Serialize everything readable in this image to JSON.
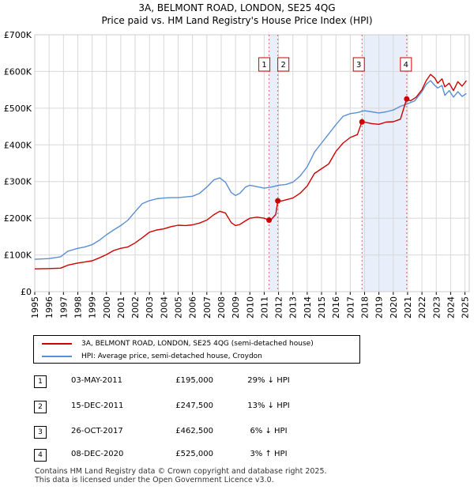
{
  "title_line1": "3A, BELMONT ROAD, LONDON, SE25 4QG",
  "title_line2": "Price paid vs. HM Land Registry's House Price Index (HPI)",
  "chart_data": {
    "type": "line",
    "xlim": [
      1995,
      2025.3
    ],
    "ylim": [
      0,
      700000
    ],
    "yticks": [
      0,
      100000,
      200000,
      300000,
      400000,
      500000,
      600000,
      700000
    ],
    "ytick_labels": [
      "£0",
      "£100K",
      "£200K",
      "£300K",
      "£400K",
      "£500K",
      "£600K",
      "£700K"
    ],
    "xticks": [
      "1995",
      "1996",
      "1997",
      "1998",
      "1999",
      "2000",
      "2001",
      "2002",
      "2003",
      "2004",
      "2005",
      "2006",
      "2007",
      "2008",
      "2009",
      "2010",
      "2011",
      "2012",
      "2013",
      "2014",
      "2015",
      "2016",
      "2017",
      "2018",
      "2019",
      "2020",
      "2021",
      "2022",
      "2023",
      "2024",
      "2025"
    ],
    "series": [
      {
        "name": "3A, BELMONT ROAD, LONDON, SE25 4QG (semi-detached house)",
        "color": "#cc0000",
        "x": [
          1995,
          1996,
          1996.8,
          1997.3,
          1998,
          1998.5,
          1999,
          1999.5,
          2000,
          2000.5,
          2001,
          2001.5,
          2002,
          2002.5,
          2003,
          2003.5,
          2004,
          2004.5,
          2005,
          2005.5,
          2006,
          2006.5,
          2007,
          2007.5,
          2007.9,
          2008.3,
          2008.7,
          2009,
          2009.3,
          2009.7,
          2010,
          2010.5,
          2011,
          2011.34,
          2011.5,
          2011.8,
          2011.95,
          2012.2,
          2012.5,
          2013,
          2013.5,
          2014,
          2014.5,
          2015,
          2015.5,
          2016,
          2016.5,
          2017,
          2017.5,
          2017.81,
          2018,
          2018.5,
          2019,
          2019.5,
          2020,
          2020.5,
          2020.93,
          2021.2,
          2021.6,
          2022,
          2022.3,
          2022.6,
          2022.9,
          2023.1,
          2023.4,
          2023.6,
          2023.9,
          2024.2,
          2024.5,
          2024.8,
          2025.1
        ],
        "y": [
          62000,
          63000,
          64000,
          72000,
          78000,
          81000,
          84000,
          92000,
          101000,
          112000,
          118000,
          122000,
          133000,
          147000,
          162000,
          168000,
          171000,
          177000,
          181000,
          180000,
          182000,
          187000,
          195000,
          210000,
          219000,
          214000,
          188000,
          180000,
          183000,
          193000,
          200000,
          203000,
          200000,
          195000,
          197000,
          210000,
          247500,
          247000,
          250000,
          255000,
          268000,
          288000,
          322000,
          335000,
          348000,
          382000,
          405000,
          420000,
          428000,
          462500,
          462000,
          458000,
          456000,
          462000,
          463000,
          470000,
          525000,
          520000,
          530000,
          550000,
          575000,
          592000,
          582000,
          568000,
          580000,
          558000,
          568000,
          548000,
          572000,
          560000,
          575000
        ]
      },
      {
        "name": "HPI: Average price, semi-detached house, Croydon",
        "color": "#5b8fd4",
        "x": [
          1995,
          1996,
          1996.8,
          1997.3,
          1998,
          1998.5,
          1999,
          1999.5,
          2000,
          2000.5,
          2001,
          2001.5,
          2002,
          2002.5,
          2003,
          2003.5,
          2004,
          2004.5,
          2005,
          2005.5,
          2006,
          2006.5,
          2007,
          2007.5,
          2007.9,
          2008.3,
          2008.7,
          2009,
          2009.3,
          2009.7,
          2010,
          2010.5,
          2011,
          2011.5,
          2012,
          2012.5,
          2013,
          2013.5,
          2014,
          2014.5,
          2015,
          2015.5,
          2016,
          2016.5,
          2017,
          2017.5,
          2018,
          2018.5,
          2019,
          2019.5,
          2020,
          2020.5,
          2021,
          2021.5,
          2022,
          2022.3,
          2022.6,
          2022.9,
          2023.1,
          2023.4,
          2023.6,
          2023.9,
          2024.2,
          2024.5,
          2024.8,
          2025.1
        ],
        "y": [
          88000,
          90000,
          95000,
          110000,
          118000,
          122000,
          128000,
          140000,
          155000,
          168000,
          180000,
          195000,
          218000,
          240000,
          248000,
          253000,
          255000,
          256000,
          256000,
          258000,
          260000,
          268000,
          285000,
          305000,
          310000,
          298000,
          270000,
          262000,
          268000,
          285000,
          290000,
          286000,
          282000,
          285000,
          290000,
          292000,
          298000,
          315000,
          340000,
          380000,
          405000,
          430000,
          455000,
          478000,
          485000,
          488000,
          493000,
          490000,
          487000,
          490000,
          495000,
          505000,
          512000,
          520000,
          545000,
          565000,
          575000,
          562000,
          555000,
          562000,
          535000,
          548000,
          530000,
          545000,
          532000,
          540000
        ]
      }
    ],
    "transactions": [
      {
        "label": "1",
        "x": 2011.34,
        "price": 195000
      },
      {
        "label": "2",
        "x": 2011.95,
        "price": 247500
      },
      {
        "label": "3",
        "x": 2017.82,
        "price": 462500
      },
      {
        "label": "4",
        "x": 2020.94,
        "price": 525000
      }
    ],
    "shaded_spans": [
      [
        2011.34,
        2011.95
      ],
      [
        2017.82,
        2020.94
      ]
    ]
  },
  "legend": {
    "red_label": "3A, BELMONT ROAD, LONDON, SE25 4QG (semi-detached house)",
    "blue_label": "HPI: Average price, semi-detached house, Croydon",
    "red_color": "#cc0000",
    "blue_color": "#5b8fd4"
  },
  "transactions_table": [
    {
      "num": "1",
      "date": "03-MAY-2011",
      "price": "£195,000",
      "hpi": "29% ↓ HPI"
    },
    {
      "num": "2",
      "date": "15-DEC-2011",
      "price": "£247,500",
      "hpi": "13% ↓ HPI"
    },
    {
      "num": "3",
      "date": "26-OCT-2017",
      "price": "£462,500",
      "hpi": "6% ↓ HPI"
    },
    {
      "num": "4",
      "date": "08-DEC-2020",
      "price": "£525,000",
      "hpi": "3% ↑ HPI"
    }
  ],
  "footer_line1": "Contains HM Land Registry data © Crown copyright and database right 2025.",
  "footer_line2": "This data is licensed under the Open Government Licence v3.0."
}
